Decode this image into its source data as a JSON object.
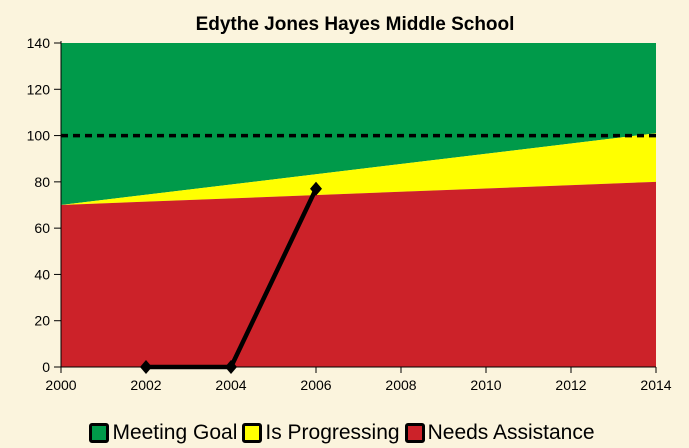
{
  "chart_data": {
    "type": "area",
    "title": "Edythe Jones Hayes Middle School",
    "xlabel": "",
    "ylabel": "",
    "xlim": [
      2000,
      2014
    ],
    "ylim": [
      0,
      140
    ],
    "x_ticks": [
      2000,
      2002,
      2004,
      2006,
      2008,
      2010,
      2012,
      2014
    ],
    "y_ticks": [
      0,
      20,
      40,
      60,
      80,
      100,
      120,
      140
    ],
    "bands": [
      {
        "name": "Meeting Goal",
        "color": "#009a4a",
        "lower": [
          [
            2000,
            70
          ],
          [
            2014,
            101
          ]
        ],
        "upper": [
          [
            2000,
            140
          ],
          [
            2014,
            140
          ]
        ]
      },
      {
        "name": "Is Progressing",
        "color": "#ffff00",
        "lower": [
          [
            2000,
            70
          ],
          [
            2014,
            80
          ]
        ],
        "upper": [
          [
            2000,
            70
          ],
          [
            2014,
            101
          ]
        ]
      },
      {
        "name": "Needs Assistance",
        "color": "#cc2229",
        "lower": [
          [
            2000,
            0
          ],
          [
            2014,
            0
          ]
        ],
        "upper": [
          [
            2000,
            70
          ],
          [
            2014,
            80
          ]
        ]
      }
    ],
    "goal_line": {
      "y": 100,
      "style": "dashed"
    },
    "series": [
      {
        "values": [
          [
            2002,
            0
          ],
          [
            2004,
            0
          ],
          [
            2006,
            77
          ]
        ],
        "color": "#000000"
      }
    ],
    "legend": {
      "position": "bottom",
      "entries": [
        "Meeting Goal",
        "Is Progressing",
        "Needs Assistance"
      ]
    }
  }
}
